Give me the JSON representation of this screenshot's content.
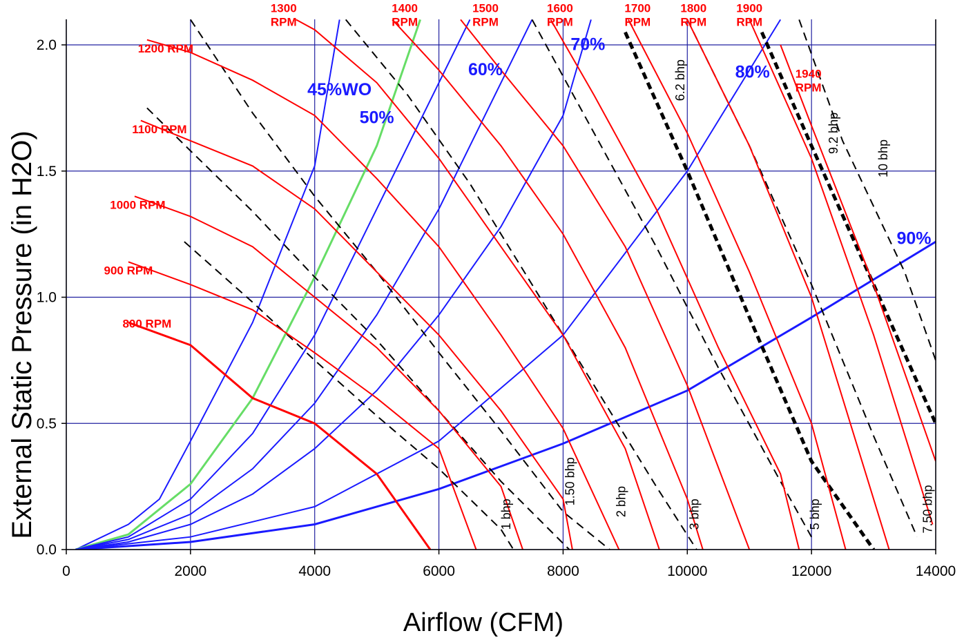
{
  "chart_data": {
    "type": "line",
    "title": "",
    "xlabel": "Airflow (CFM)",
    "ylabel": "External Static Pressure (in H2O)",
    "xlim": [
      0,
      14000
    ],
    "ylim": [
      0,
      2.1
    ],
    "xticks": [
      0,
      2000,
      4000,
      6000,
      8000,
      10000,
      12000,
      14000
    ],
    "xtick_labels": [
      "0",
      "2000",
      "4000",
      "6000",
      "8000",
      "10000",
      "12000",
      "14000"
    ],
    "yticks": [
      0,
      0.5,
      1.0,
      1.5,
      2.0
    ],
    "ytick_labels": [
      "0.0",
      "0.5",
      "1.0",
      "1.5",
      "2.0"
    ],
    "grid": true,
    "colors": {
      "rpm": "#ff0000",
      "wide_open": "#1a1aff",
      "highlight_wo": "#66dd66",
      "bhp": "#000000",
      "grid": "#2020a0"
    },
    "rpm_series": [
      {
        "name": "800 RPM",
        "label_lines": [
          "800 RPM"
        ],
        "points": [
          [
            1000,
            0.9
          ],
          [
            2000,
            0.81
          ],
          [
            3000,
            0.6
          ],
          [
            4000,
            0.5
          ],
          [
            5000,
            0.3
          ],
          [
            5860,
            0
          ]
        ]
      },
      {
        "name": "900 RPM",
        "label_lines": [
          "900 RPM"
        ],
        "points": [
          [
            1000,
            1.14
          ],
          [
            2000,
            1.05
          ],
          [
            3000,
            0.95
          ],
          [
            4000,
            0.78
          ],
          [
            5000,
            0.6
          ],
          [
            6000,
            0.4
          ],
          [
            6600,
            0
          ]
        ]
      },
      {
        "name": "1000 RPM",
        "label_lines": [
          "1000 RPM"
        ],
        "points": [
          [
            1100,
            1.4
          ],
          [
            2000,
            1.32
          ],
          [
            3000,
            1.2
          ],
          [
            4000,
            1.0
          ],
          [
            5000,
            0.8
          ],
          [
            6000,
            0.55
          ],
          [
            7000,
            0.25
          ],
          [
            7350,
            0
          ]
        ]
      },
      {
        "name": "1100 RPM",
        "label_lines": [
          "1100 RPM"
        ],
        "points": [
          [
            1200,
            1.7
          ],
          [
            2000,
            1.62
          ],
          [
            3000,
            1.52
          ],
          [
            4000,
            1.35
          ],
          [
            5000,
            1.1
          ],
          [
            6000,
            0.85
          ],
          [
            7000,
            0.55
          ],
          [
            8000,
            0.2
          ],
          [
            8150,
            0
          ]
        ]
      },
      {
        "name": "1200 RPM",
        "label_lines": [
          "1200 RPM"
        ],
        "points": [
          [
            1300,
            2.02
          ],
          [
            2000,
            1.97
          ],
          [
            3000,
            1.86
          ],
          [
            4000,
            1.72
          ],
          [
            5000,
            1.47
          ],
          [
            6000,
            1.2
          ],
          [
            7000,
            0.85
          ],
          [
            8000,
            0.48
          ],
          [
            8900,
            0
          ]
        ]
      },
      {
        "name": "1300 RPM",
        "label_lines": [
          "1300",
          "RPM"
        ],
        "points": [
          [
            3700,
            2.1
          ],
          [
            4000,
            2.06
          ],
          [
            5000,
            1.85
          ],
          [
            6000,
            1.55
          ],
          [
            7000,
            1.2
          ],
          [
            8000,
            0.85
          ],
          [
            9000,
            0.4
          ],
          [
            9550,
            0
          ]
        ]
      },
      {
        "name": "1400 RPM",
        "label_lines": [
          "1400",
          "RPM"
        ],
        "points": [
          [
            5250,
            2.1
          ],
          [
            6000,
            1.9
          ],
          [
            7000,
            1.6
          ],
          [
            8000,
            1.25
          ],
          [
            9000,
            0.8
          ],
          [
            10000,
            0.2
          ],
          [
            10250,
            0
          ]
        ]
      },
      {
        "name": "1500 RPM",
        "label_lines": [
          "1500",
          "RPM"
        ],
        "points": [
          [
            6350,
            2.1
          ],
          [
            7000,
            1.9
          ],
          [
            8000,
            1.6
          ],
          [
            9000,
            1.2
          ],
          [
            10000,
            0.65
          ],
          [
            11000,
            0
          ]
        ]
      },
      {
        "name": "1600 RPM",
        "label_lines": [
          "1600",
          "RPM"
        ],
        "points": [
          [
            7800,
            2.1
          ],
          [
            8500,
            1.8
          ],
          [
            9500,
            1.35
          ],
          [
            10500,
            0.8
          ],
          [
            11500,
            0.3
          ],
          [
            11800,
            0
          ]
        ]
      },
      {
        "name": "1700 RPM",
        "label_lines": [
          "1700",
          "RPM"
        ],
        "points": [
          [
            9050,
            2.1
          ],
          [
            10000,
            1.65
          ],
          [
            11000,
            1.1
          ],
          [
            12000,
            0.5
          ],
          [
            12550,
            0
          ]
        ]
      },
      {
        "name": "1800 RPM",
        "label_lines": [
          "1800",
          "RPM"
        ],
        "points": [
          [
            10000,
            2.1
          ],
          [
            11000,
            1.6
          ],
          [
            12000,
            1.0
          ],
          [
            13250,
            0
          ]
        ]
      },
      {
        "name": "1900 RPM",
        "label_lines": [
          "1900",
          "RPM"
        ],
        "points": [
          [
            11000,
            2.1
          ],
          [
            12000,
            1.55
          ],
          [
            13000,
            0.85
          ],
          [
            13950,
            0.1
          ]
        ]
      },
      {
        "name": "1940 RPM",
        "label_lines": [
          "1940",
          "RPM"
        ],
        "points": [
          [
            11500,
            2.0
          ],
          [
            12000,
            1.68
          ],
          [
            13000,
            1.05
          ],
          [
            14000,
            0.35
          ]
        ]
      }
    ],
    "wide_open_series": [
      {
        "name": "45%WO",
        "highlight": false,
        "points": [
          [
            150,
            0
          ],
          [
            1000,
            0.1
          ],
          [
            1500,
            0.2
          ],
          [
            2000,
            0.43
          ],
          [
            3000,
            0.9
          ],
          [
            4000,
            1.52
          ],
          [
            4400,
            2.1
          ]
        ]
      },
      {
        "name": "50%",
        "highlight": true,
        "points": [
          [
            150,
            0
          ],
          [
            1000,
            0.06
          ],
          [
            2000,
            0.26
          ],
          [
            3000,
            0.6
          ],
          [
            4000,
            1.08
          ],
          [
            5000,
            1.6
          ],
          [
            5700,
            2.1
          ]
        ]
      },
      {
        "name": "",
        "highlight": false,
        "points": [
          [
            150,
            0
          ],
          [
            1000,
            0.05
          ],
          [
            2000,
            0.2
          ],
          [
            3000,
            0.46
          ],
          [
            4000,
            0.85
          ],
          [
            5000,
            1.35
          ],
          [
            6000,
            1.85
          ],
          [
            6500,
            2.1
          ]
        ]
      },
      {
        "name": "60%",
        "highlight": false,
        "points": [
          [
            150,
            0
          ],
          [
            1000,
            0.04
          ],
          [
            2000,
            0.14
          ],
          [
            3000,
            0.32
          ],
          [
            4000,
            0.58
          ],
          [
            5000,
            0.93
          ],
          [
            6000,
            1.35
          ],
          [
            7000,
            1.85
          ],
          [
            7500,
            2.1
          ]
        ]
      },
      {
        "name": "70%",
        "highlight": false,
        "points": [
          [
            150,
            0
          ],
          [
            1000,
            0.03
          ],
          [
            2000,
            0.1
          ],
          [
            3000,
            0.22
          ],
          [
            4000,
            0.4
          ],
          [
            5000,
            0.63
          ],
          [
            6000,
            0.93
          ],
          [
            7000,
            1.28
          ],
          [
            8000,
            1.72
          ],
          [
            8450,
            2.1
          ]
        ]
      },
      {
        "name": "80%",
        "highlight": false,
        "points": [
          [
            150,
            0
          ],
          [
            2000,
            0.05
          ],
          [
            4000,
            0.17
          ],
          [
            6000,
            0.43
          ],
          [
            8000,
            0.85
          ],
          [
            10000,
            1.5
          ],
          [
            11500,
            2.1
          ]
        ]
      },
      {
        "name": "90%",
        "highlight": false,
        "points": [
          [
            150,
            0
          ],
          [
            2000,
            0.03
          ],
          [
            4000,
            0.1
          ],
          [
            6000,
            0.24
          ],
          [
            8000,
            0.42
          ],
          [
            10000,
            0.63
          ],
          [
            12000,
            0.92
          ],
          [
            14000,
            1.22
          ]
        ]
      }
    ],
    "bhp_series": [
      {
        "name": "1 bhp",
        "bold": false,
        "points": [
          [
            1900,
            1.22
          ],
          [
            3000,
            0.98
          ],
          [
            4000,
            0.75
          ],
          [
            5000,
            0.53
          ],
          [
            6000,
            0.32
          ],
          [
            7000,
            0.08
          ],
          [
            7200,
            0
          ]
        ]
      },
      {
        "name": "1.50 bhp",
        "bold": false,
        "points": [
          [
            1300,
            1.75
          ],
          [
            2000,
            1.58
          ],
          [
            3000,
            1.34
          ],
          [
            4000,
            1.08
          ],
          [
            5000,
            0.83
          ],
          [
            6000,
            0.55
          ],
          [
            7000,
            0.27
          ],
          [
            8100,
            0
          ]
        ]
      },
      {
        "name": "2 bhp",
        "bold": false,
        "points": [
          [
            2000,
            2.1
          ],
          [
            3000,
            1.73
          ],
          [
            4000,
            1.4
          ],
          [
            5000,
            1.1
          ],
          [
            6000,
            0.78
          ],
          [
            7000,
            0.47
          ],
          [
            8000,
            0.15
          ],
          [
            8750,
            0
          ]
        ]
      },
      {
        "name": "3 bhp",
        "bold": false,
        "points": [
          [
            4500,
            2.1
          ],
          [
            5500,
            1.8
          ],
          [
            6500,
            1.45
          ],
          [
            7500,
            1.05
          ],
          [
            8500,
            0.65
          ],
          [
            9500,
            0.25
          ],
          [
            10150,
            0
          ]
        ]
      },
      {
        "name": "5 bhp",
        "bold": false,
        "points": [
          [
            7500,
            2.1
          ],
          [
            8500,
            1.65
          ],
          [
            9500,
            1.2
          ],
          [
            10500,
            0.72
          ],
          [
            11500,
            0.27
          ],
          [
            12000,
            0.05
          ]
        ]
      },
      {
        "name": "6.2 bhp",
        "bold": true,
        "points": [
          [
            9000,
            2.05
          ],
          [
            10000,
            1.5
          ],
          [
            11000,
            0.92
          ],
          [
            12000,
            0.35
          ],
          [
            13000,
            0
          ]
        ]
      },
      {
        "name": "7.50 bhp",
        "bold": false,
        "points": [
          [
            10000,
            2.1
          ],
          [
            11000,
            1.6
          ],
          [
            12000,
            1.05
          ],
          [
            13000,
            0.45
          ],
          [
            13700,
            0.05
          ]
        ]
      },
      {
        "name": "9.2 bhp",
        "bold": true,
        "points": [
          [
            11200,
            2.05
          ],
          [
            12000,
            1.6
          ],
          [
            13000,
            1.05
          ],
          [
            14000,
            0.5
          ]
        ]
      },
      {
        "name": "10 bhp",
        "bold": false,
        "points": [
          [
            11800,
            2.1
          ],
          [
            12500,
            1.62
          ],
          [
            13500,
            1.1
          ],
          [
            14000,
            0.75
          ]
        ]
      }
    ],
    "labels": {
      "rpm": [
        {
          "text": [
            "800 RPM"
          ],
          "at": [
            1300,
            0.88
          ]
        },
        {
          "text": [
            "900 RPM"
          ],
          "at": [
            1000,
            1.09
          ]
        },
        {
          "text": [
            "1000 RPM"
          ],
          "at": [
            1150,
            1.35
          ]
        },
        {
          "text": [
            "1100 RPM"
          ],
          "at": [
            1500,
            1.65
          ]
        },
        {
          "text": [
            "1200 RPM"
          ],
          "at": [
            1600,
            1.97
          ]
        },
        {
          "text": [
            "1300",
            "RPM"
          ],
          "at": [
            3500,
            2.13
          ]
        },
        {
          "text": [
            "1400",
            "RPM"
          ],
          "at": [
            5450,
            2.13
          ]
        },
        {
          "text": [
            "1500",
            "RPM"
          ],
          "at": [
            6750,
            2.13
          ]
        },
        {
          "text": [
            "1600",
            "RPM"
          ],
          "at": [
            7950,
            2.13
          ]
        },
        {
          "text": [
            "1700",
            "RPM"
          ],
          "at": [
            9200,
            2.13
          ]
        },
        {
          "text": [
            "1800",
            "RPM"
          ],
          "at": [
            10100,
            2.13
          ]
        },
        {
          "text": [
            "1900",
            "RPM"
          ],
          "at": [
            11000,
            2.13
          ]
        },
        {
          "text": [
            "1940",
            "RPM"
          ],
          "at": [
            11950,
            1.87
          ]
        }
      ],
      "wo": [
        {
          "text": "45%WO",
          "at": [
            4400,
            1.8
          ]
        },
        {
          "text": "50%",
          "at": [
            5000,
            1.69
          ]
        },
        {
          "text": "60%",
          "at": [
            6750,
            1.88
          ]
        },
        {
          "text": "70%",
          "at": [
            8400,
            1.98
          ]
        },
        {
          "text": "80%",
          "at": [
            11050,
            1.87
          ]
        },
        {
          "text": "90%",
          "at": [
            13650,
            1.21
          ]
        }
      ],
      "bhp": [
        {
          "text": "1 bhp",
          "at": [
            7150,
            0.14
          ]
        },
        {
          "text": "1.50 bhp",
          "at": [
            8180,
            0.27
          ]
        },
        {
          "text": "2 bhp",
          "at": [
            9000,
            0.19
          ]
        },
        {
          "text": "3 bhp",
          "at": [
            10180,
            0.14
          ]
        },
        {
          "text": "5 bhp",
          "at": [
            12120,
            0.14
          ]
        },
        {
          "text": "6.2 bhp",
          "at": [
            9950,
            1.86
          ]
        },
        {
          "text": "7.50 bhp",
          "at": [
            13940,
            0.16
          ]
        },
        {
          "text": "9.2 bhp",
          "at": [
            12420,
            1.65
          ]
        },
        {
          "text": "10 bhp",
          "at": [
            13220,
            1.55
          ]
        }
      ]
    }
  }
}
